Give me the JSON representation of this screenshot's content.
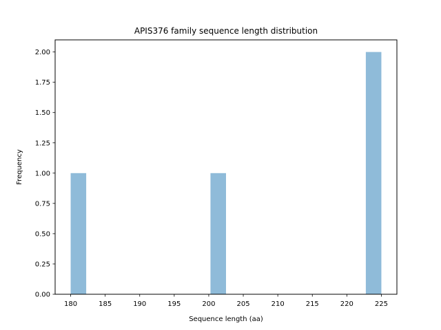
{
  "chart_data": {
    "type": "bar",
    "title": "APIS376 family sequence length distribution",
    "xlabel": "Sequence length (aa)",
    "ylabel": "Frequency",
    "xlim": [
      177.75,
      227.25
    ],
    "ylim": [
      0,
      2.1
    ],
    "x_ticks": [
      180,
      185,
      190,
      195,
      200,
      205,
      210,
      215,
      220,
      225
    ],
    "y_ticks": [
      0,
      0.25,
      0.5,
      0.75,
      1.0,
      1.25,
      1.5,
      1.75,
      2.0
    ],
    "y_tick_labels": [
      "0.00",
      "0.25",
      "0.50",
      "0.75",
      "1.00",
      "1.25",
      "1.50",
      "1.75",
      "2.00"
    ],
    "bins": [
      {
        "start": 180.0,
        "end": 182.25,
        "count": 1
      },
      {
        "start": 200.25,
        "end": 202.5,
        "count": 1
      },
      {
        "start": 222.75,
        "end": 225.0,
        "count": 2
      }
    ],
    "bar_color": "#1f77b4",
    "bar_opacity": 0.5,
    "grid": false
  }
}
